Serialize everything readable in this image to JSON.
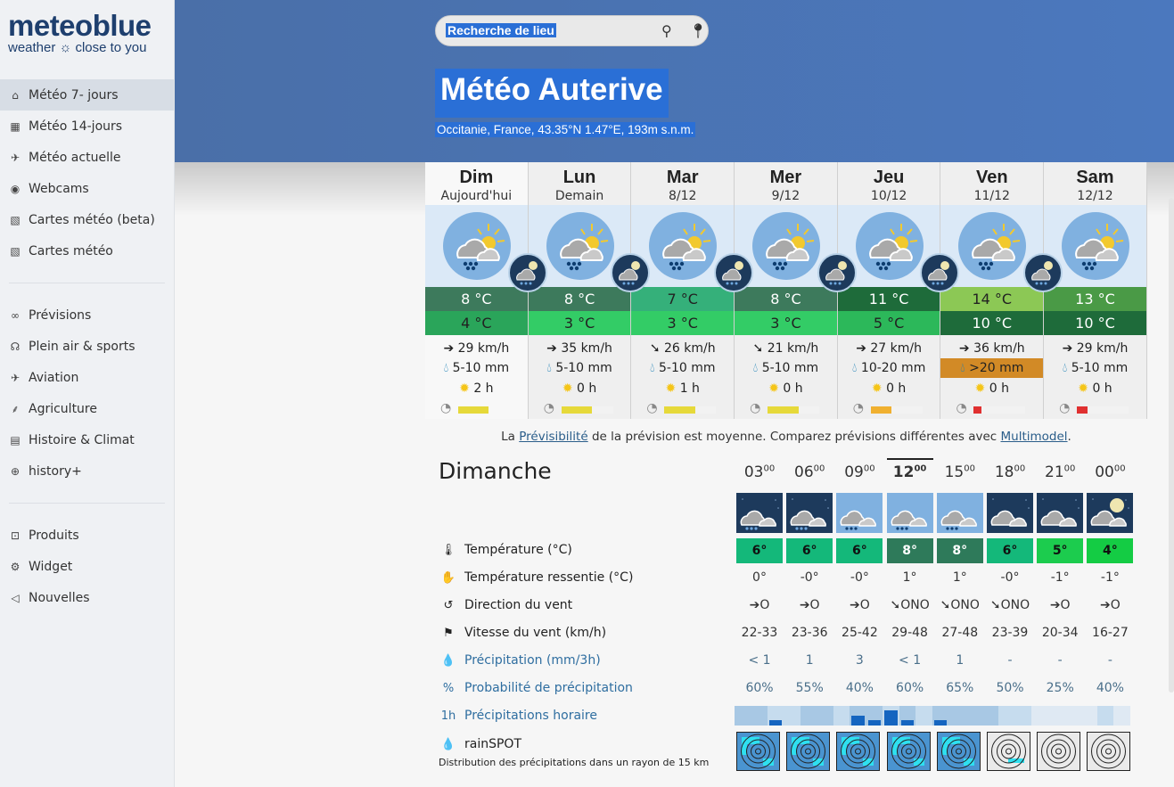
{
  "logo": {
    "name": "meteoblue",
    "tagline": "weather ☼ close to you"
  },
  "sidebar": {
    "groups": [
      [
        {
          "label": "Météo 7- jours",
          "icon": "home-icon",
          "glyph": "⌂",
          "active": true
        },
        {
          "label": "Météo 14-jours",
          "icon": "calendar-icon",
          "glyph": "▦"
        },
        {
          "label": "Météo actuelle",
          "icon": "satellite-icon",
          "glyph": "✈"
        },
        {
          "label": "Webcams",
          "icon": "webcam-icon",
          "glyph": "◉"
        },
        {
          "label": "Cartes météo (beta)",
          "icon": "map-icon",
          "glyph": "▧"
        },
        {
          "label": "Cartes météo",
          "icon": "map-icon",
          "glyph": "▧"
        }
      ],
      [
        {
          "label": "Prévisions",
          "icon": "binoculars-icon",
          "glyph": "∞"
        },
        {
          "label": "Plein air & sports",
          "icon": "hiker-icon",
          "glyph": "☊"
        },
        {
          "label": "Aviation",
          "icon": "plane-icon",
          "glyph": "✈"
        },
        {
          "label": "Agriculture",
          "icon": "plant-icon",
          "glyph": "⸙"
        },
        {
          "label": "Histoire & Climat",
          "icon": "table-icon",
          "glyph": "▤"
        },
        {
          "label": "history+",
          "icon": "history-plus-icon",
          "glyph": "⊕"
        }
      ],
      [
        {
          "label": "Produits",
          "icon": "cart-icon",
          "glyph": "⊡"
        },
        {
          "label": "Widget",
          "icon": "widget-icon",
          "glyph": "⚙"
        },
        {
          "label": "Nouvelles",
          "icon": "megaphone-icon",
          "glyph": "◁"
        }
      ]
    ]
  },
  "header": {
    "search_placeholder": "Recherche de lieu",
    "title": "Météo Auterive",
    "subtitle": "Occitanie, France, 43.35°N 1.47°E, 193m s.n.m."
  },
  "colors": {
    "header": "#4b72b0",
    "selection": "#2a6fd6",
    "link": "#2f6ea0"
  },
  "days": [
    {
      "name": "Dim",
      "date": "Aujourd'hui",
      "max": "8 °C",
      "min": "4 °C",
      "max_color": "#3d7a5c",
      "min_color": "#2aa55a",
      "wind": "29 km/h",
      "wind_dir": "➔",
      "precip": "5-10 mm",
      "sun": "2 h",
      "predictability": 0.5,
      "pred_color": "#e6d93a",
      "today": true
    },
    {
      "name": "Lun",
      "date": "Demain",
      "max": "8 °C",
      "min": "3 °C",
      "max_color": "#3d7a5c",
      "min_color": "#33cc66",
      "wind": "35 km/h",
      "wind_dir": "➔",
      "precip": "5-10 mm",
      "sun": "0 h",
      "predictability": 0.6,
      "pred_color": "#e6d93a"
    },
    {
      "name": "Mar",
      "date": "8/12",
      "max": "7 °C",
      "min": "3 °C",
      "max_color": "#35b07a",
      "min_color": "#33cc66",
      "wind": "26 km/h",
      "wind_dir": "➘",
      "precip": "5-10 mm",
      "sun": "1 h",
      "predictability": 0.6,
      "pred_color": "#e6d93a"
    },
    {
      "name": "Mer",
      "date": "9/12",
      "max": "8 °C",
      "min": "3 °C",
      "max_color": "#3d7a5c",
      "min_color": "#33cc66",
      "wind": "21 km/h",
      "wind_dir": "➘",
      "precip": "5-10 mm",
      "sun": "0 h",
      "predictability": 0.6,
      "pred_color": "#e6d93a"
    },
    {
      "name": "Jeu",
      "date": "10/12",
      "max": "11 °C",
      "min": "5 °C",
      "max_color": "#1e6b3a",
      "min_color": "#2cb85a",
      "wind": "27 km/h",
      "wind_dir": "➔",
      "precip": "10-20 mm",
      "sun": "0 h",
      "predictability": 0.4,
      "pred_color": "#f0b030"
    },
    {
      "name": "Ven",
      "date": "11/12",
      "max": "14 °C",
      "min": "10 °C",
      "max_color": "#8cc855",
      "min_color": "#1e6b3a",
      "wind": "36 km/h",
      "wind_dir": "➔",
      "precip": ">20 mm",
      "precip_bg": "#d28a26",
      "sun": "0 h",
      "predictability": 0.15,
      "pred_color": "#e03030"
    },
    {
      "name": "Sam",
      "date": "12/12",
      "max": "13 °C",
      "min": "10 °C",
      "max_color": "#4a9a46",
      "min_color": "#1e6b3a",
      "wind": "29 km/h",
      "wind_dir": "➔",
      "precip": "5-10 mm",
      "sun": "0 h",
      "predictability": 0.2,
      "pred_color": "#e03030"
    }
  ],
  "note": {
    "pre": "La ",
    "link1": "Prévisibilité",
    "mid": " de la prévision est moyenne. Comparez prévisions différentes avec ",
    "link2": "Multimodel",
    "post": "."
  },
  "hourly": {
    "day": "Dimanche",
    "times": [
      {
        "h": "03",
        "m": "00"
      },
      {
        "h": "06",
        "m": "00"
      },
      {
        "h": "09",
        "m": "00"
      },
      {
        "h": "12",
        "m": "00",
        "current": true
      },
      {
        "h": "15",
        "m": "00"
      },
      {
        "h": "18",
        "m": "00"
      },
      {
        "h": "21",
        "m": "00"
      },
      {
        "h": "00",
        "m": "00"
      }
    ],
    "icons": [
      "night-rain",
      "night-rain",
      "day-rain",
      "day-rain",
      "day-rain",
      "night-cloud",
      "night-cloud",
      "night-moon-cloud"
    ],
    "rows": [
      {
        "label": "Température (°C)",
        "icon": "thermometer-icon",
        "glyph": "🌡",
        "values": [
          "6°",
          "6°",
          "6°",
          "8°",
          "8°",
          "6°",
          "5°",
          "4°"
        ],
        "colors": [
          "#14b87a",
          "#14b87a",
          "#14b87a",
          "#2e7a5a",
          "#2e7a5a",
          "#14b87a",
          "#1ccc4e",
          "#14cc44"
        ]
      },
      {
        "label": "Température ressentie (°C)",
        "icon": "hand-icon",
        "glyph": "✋",
        "values": [
          "0°",
          "-0°",
          "-0°",
          "1°",
          "1°",
          "-0°",
          "-1°",
          "-1°"
        ]
      },
      {
        "label": "Direction du vent",
        "icon": "wind-direction-icon",
        "glyph": "↺",
        "values": [
          "➔O",
          "➔O",
          "➔O",
          "➘ONO",
          "➘ONO",
          "➘ONO",
          "➔O",
          "➔O"
        ]
      },
      {
        "label": "Vitesse du vent (km/h)",
        "icon": "windsock-icon",
        "glyph": "⚑",
        "values": [
          "22-33",
          "23-36",
          "25-42",
          "29-48",
          "27-48",
          "23-39",
          "20-34",
          "16-27"
        ]
      },
      {
        "label": "Précipitation (mm/3h)",
        "icon": "drop-icon",
        "glyph": "💧",
        "link": true,
        "values": [
          "< 1",
          "1",
          "3",
          "< 1",
          "1",
          "-",
          "-",
          "-"
        ]
      },
      {
        "label": "Probabilité de précipitation",
        "icon": "percent-drop-icon",
        "glyph": "%",
        "link": true,
        "values": [
          "60%",
          "55%",
          "40%",
          "60%",
          "65%",
          "50%",
          "25%",
          "40%"
        ]
      },
      {
        "label": "Précipitations horaire",
        "icon": "hourly-precip-icon",
        "glyph": "1h",
        "link": true
      },
      {
        "label": "rainSPOT",
        "icon": "drop-black-icon",
        "glyph": "💧"
      }
    ],
    "hourly_precip_mm": [
      0,
      0,
      0.2,
      0,
      0,
      0,
      0,
      0.4,
      0.2,
      0.6,
      0.2,
      0,
      0.2,
      0,
      0,
      0,
      0,
      0,
      0,
      0,
      0,
      0,
      0,
      0
    ],
    "rainspot_subtitle": "Distribution des précipitations dans un rayon de 15 km",
    "rainspot_active": [
      true,
      true,
      true,
      true,
      true,
      false,
      false,
      false
    ]
  }
}
